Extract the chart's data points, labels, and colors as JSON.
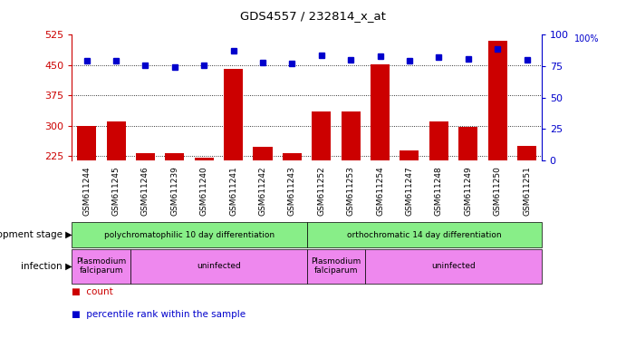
{
  "title": "GDS4557 / 232814_x_at",
  "samples": [
    "GSM611244",
    "GSM611245",
    "GSM611246",
    "GSM611239",
    "GSM611240",
    "GSM611241",
    "GSM611242",
    "GSM611243",
    "GSM611252",
    "GSM611253",
    "GSM611254",
    "GSM611247",
    "GSM611248",
    "GSM611249",
    "GSM611250",
    "GSM611251"
  ],
  "counts": [
    300,
    310,
    232,
    232,
    222,
    440,
    248,
    232,
    335,
    335,
    452,
    238,
    310,
    298,
    510,
    250
  ],
  "percentiles": [
    79,
    79,
    76,
    74,
    76,
    87,
    78,
    77,
    84,
    80,
    83,
    79,
    82,
    81,
    89,
    80
  ],
  "ylim_left": [
    215,
    525
  ],
  "ylim_right": [
    0,
    100
  ],
  "yticks_left": [
    225,
    300,
    375,
    450,
    525
  ],
  "yticks_right": [
    0,
    25,
    50,
    75,
    100
  ],
  "bar_color": "#cc0000",
  "dot_color": "#0000cc",
  "axis_color_left": "#cc0000",
  "axis_color_right": "#0000cc",
  "dev_stages": [
    {
      "label": "polychromatophilic 10 day differentiation",
      "start": 0,
      "end": 7,
      "color": "#88ee88"
    },
    {
      "label": "orthochromatic 14 day differentiation",
      "start": 8,
      "end": 15,
      "color": "#88ee88"
    }
  ],
  "inf_groups": [
    {
      "label": "Plasmodium\nfalciparum",
      "start": 0,
      "end": 1,
      "color": "#ee88ee"
    },
    {
      "label": "uninfected",
      "start": 2,
      "end": 7,
      "color": "#ee88ee"
    },
    {
      "label": "Plasmodium\nfalciparum",
      "start": 8,
      "end": 9,
      "color": "#ee88ee"
    },
    {
      "label": "uninfected",
      "start": 10,
      "end": 15,
      "color": "#ee88ee"
    }
  ],
  "legend_count_label": "count",
  "legend_percentile_label": "percentile rank within the sample",
  "dev_stage_label": "development stage",
  "infection_label": "infection",
  "background_color": "#ffffff"
}
